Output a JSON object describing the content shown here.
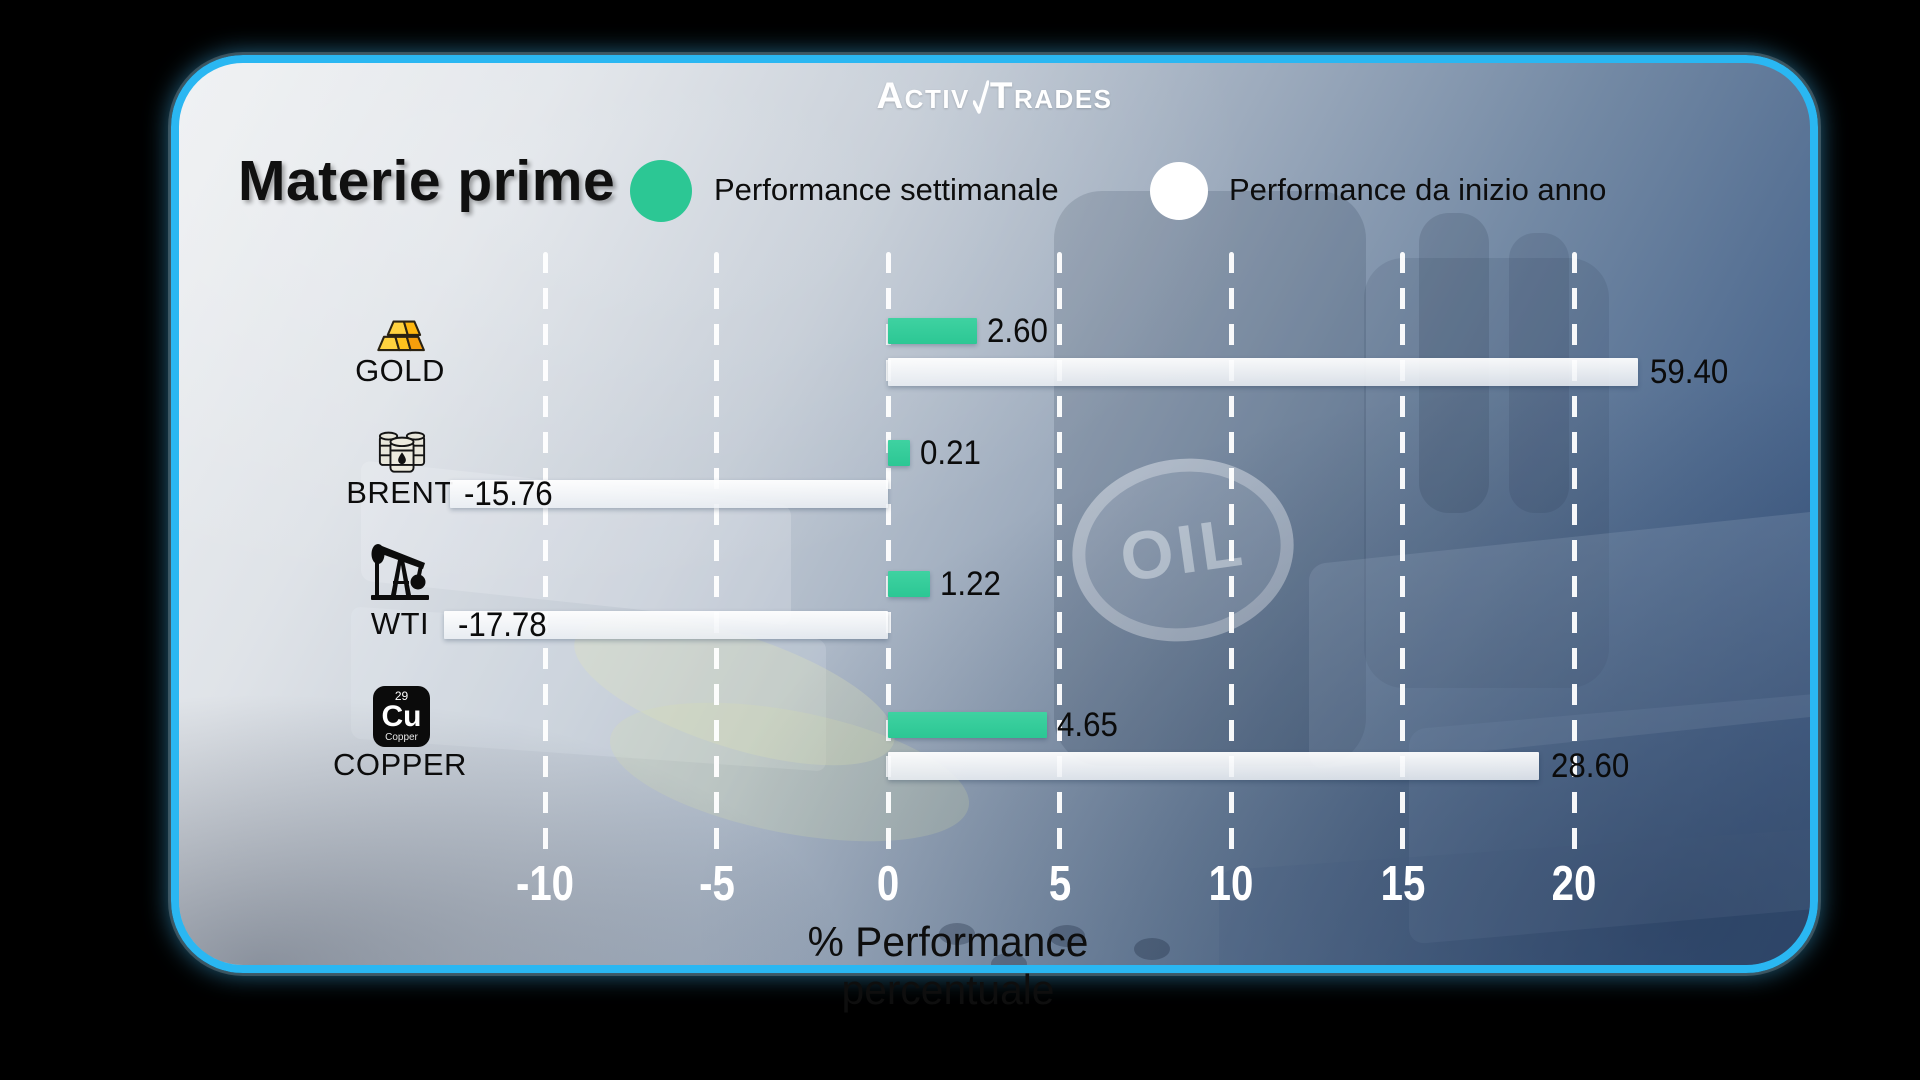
{
  "brand": {
    "logo_left": "Activ",
    "logo_right": "Trades"
  },
  "header": {
    "title": "Materie prime"
  },
  "legend": [
    {
      "label": "Performance settimanale",
      "color": "#2cc794"
    },
    {
      "label": "Performance da inizio anno",
      "color": "#ffffff"
    }
  ],
  "background": {
    "oil_text": "OIL"
  },
  "copper_element": {
    "number": "29",
    "symbol": "Cu",
    "name": "Copper"
  },
  "chart_data": {
    "type": "bar",
    "orientation": "horizontal",
    "title": "Materie prime",
    "categories": [
      "GOLD",
      "BRENT",
      "WTI",
      "COPPER"
    ],
    "icons": [
      "gold-bars",
      "oil-barrels",
      "oil-pumpjack",
      "copper-element-tile"
    ],
    "series": [
      {
        "name": "Performance settimanale",
        "color": "#2cc794",
        "values": [
          2.6,
          0.21,
          1.22,
          4.65
        ],
        "labels": [
          "2.60",
          "0.21",
          "1.22",
          "4.65"
        ]
      },
      {
        "name": "Performance da inizio anno",
        "color": "#ffffff",
        "values": [
          59.4,
          -15.76,
          -17.78,
          28.6
        ],
        "labels": [
          "59.40",
          "-15.76",
          "-17.78",
          "28.60"
        ]
      }
    ],
    "xlabel": "% Performance percentuale",
    "x_ticks": [
      -10,
      -5,
      0,
      5,
      10,
      15,
      20
    ],
    "xlim": [
      -12.5,
      22
    ],
    "grid": "dashed-vertical-white",
    "legend_position": "top"
  }
}
